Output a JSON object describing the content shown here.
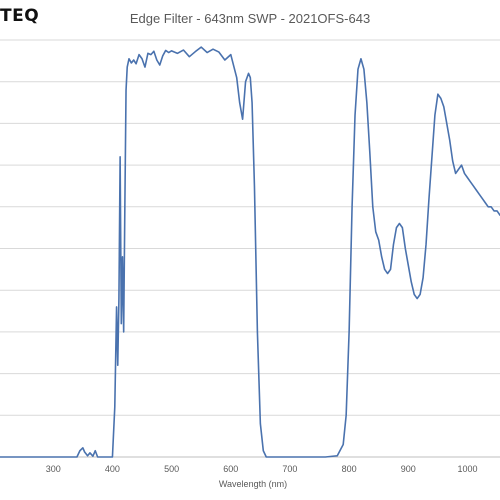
{
  "header": {
    "logo_text": "TEQ",
    "title": "Edge Filter - 643nm SWP - 2021OFS-643"
  },
  "chart_data": {
    "type": "line",
    "title": "Edge Filter - 643nm SWP - 2021OFS-643",
    "xlabel": "Wavelength (nm)",
    "ylabel": "",
    "xlim": [
      210,
      1055
    ],
    "ylim": [
      0,
      100
    ],
    "xticks": [
      300,
      400,
      500,
      600,
      700,
      800,
      900,
      1000
    ],
    "tick_labels": [
      "300",
      "400",
      "500",
      "600",
      "700",
      "800",
      "900",
      "1000"
    ],
    "y_gridlines": [
      0,
      10,
      20,
      30,
      40,
      50,
      60,
      70,
      80,
      90,
      100
    ],
    "grid": true,
    "line_color": "#4a72ae",
    "series": [
      {
        "x": [
          210,
          300,
          340,
          345,
          350,
          353,
          358,
          362,
          367,
          371,
          375,
          400,
          404,
          407,
          409,
          411,
          413,
          415,
          417,
          419,
          421,
          423,
          425,
          428,
          432,
          436,
          440,
          445,
          450,
          455,
          460,
          465,
          470,
          475,
          480,
          485,
          490,
          495,
          500,
          510,
          520,
          530,
          540,
          550,
          560,
          570,
          580,
          590,
          600,
          610,
          615,
          620,
          625,
          630,
          633,
          636,
          640,
          645,
          650,
          655,
          660,
          700,
          760,
          780,
          790,
          795,
          800,
          805,
          810,
          815,
          820,
          825,
          830,
          835,
          840,
          845,
          850,
          855,
          860,
          865,
          870,
          875,
          880,
          885,
          890,
          895,
          900,
          905,
          910,
          915,
          920,
          925,
          930,
          935,
          940,
          945,
          950,
          955,
          960,
          965,
          970,
          975,
          980,
          985,
          990,
          995,
          1000,
          1005,
          1010,
          1015,
          1020,
          1025,
          1030,
          1035,
          1040,
          1045,
          1050,
          1055
        ],
        "y": [
          0,
          0,
          0,
          1.5,
          2.2,
          1.2,
          0.3,
          1.0,
          0.2,
          1.5,
          0,
          0,
          12,
          36,
          22,
          38,
          72,
          32,
          48,
          30,
          60,
          88,
          93.5,
          95.5,
          94.5,
          95.2,
          94.3,
          96.5,
          95.5,
          93.5,
          96.8,
          96.5,
          97.3,
          95.2,
          94,
          96.2,
          97.5,
          97,
          97.4,
          96.8,
          97.6,
          96,
          97.2,
          98.3,
          97,
          97.8,
          97.1,
          95.2,
          96.5,
          91,
          85,
          81,
          90,
          92,
          91,
          85,
          65,
          30,
          8,
          1.5,
          0,
          0,
          0,
          0.3,
          3,
          10,
          30,
          60,
          82,
          93,
          95.5,
          93,
          85,
          73,
          60,
          54,
          52,
          48,
          45,
          44,
          45,
          51,
          55,
          56,
          55,
          50,
          46,
          42,
          39,
          38,
          39,
          43,
          51,
          62,
          72,
          82,
          87,
          86,
          84,
          80,
          76,
          71,
          68,
          69,
          70,
          68,
          67,
          66,
          65,
          64,
          63,
          62,
          61,
          60,
          60,
          59,
          59,
          58
        ]
      }
    ]
  }
}
